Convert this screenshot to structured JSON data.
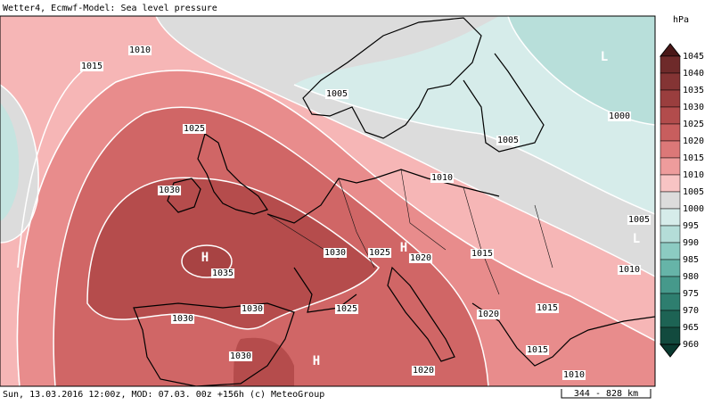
{
  "header": {
    "title": "Wetter4, Ecmwf-Model: Sea level pressure"
  },
  "footer": {
    "run_info": "Sun, 13.03.2016 12:00z, MOD: 07.03. 00z +156h (c) MeteoGroup",
    "scale": "344 - 828 km"
  },
  "legend": {
    "unit": "hPa",
    "levels": [
      "1045",
      "1040",
      "1035",
      "1030",
      "1025",
      "1020",
      "1015",
      "1010",
      "1005",
      "1000",
      "995",
      "990",
      "985",
      "980",
      "975",
      "970",
      "965",
      "960"
    ],
    "colors": [
      "#4a1818",
      "#6e2a2a",
      "#843434",
      "#9a3e3e",
      "#b24c4c",
      "#c85e5e",
      "#dc7878",
      "#ee9c9c",
      "#f8c4c4",
      "#dcdcdc",
      "#d6ecea",
      "#b4ddd8",
      "#8ccbc2",
      "#66b4a8",
      "#46998b",
      "#2e7e6f",
      "#1d6354",
      "#124a3e",
      "#0a3a30"
    ]
  },
  "map": {
    "isobar_labels": [
      "1010",
      "1015",
      "1005",
      "1000",
      "1025",
      "1005",
      "1030",
      "1010",
      "1005",
      "1030",
      "1025",
      "1020",
      "1015",
      "1035",
      "1010",
      "1030",
      "1025",
      "1030",
      "1020",
      "1015",
      "1015",
      "1030",
      "1020",
      "1010"
    ],
    "centers": [
      "H",
      "L",
      "L",
      "H",
      "H"
    ]
  }
}
